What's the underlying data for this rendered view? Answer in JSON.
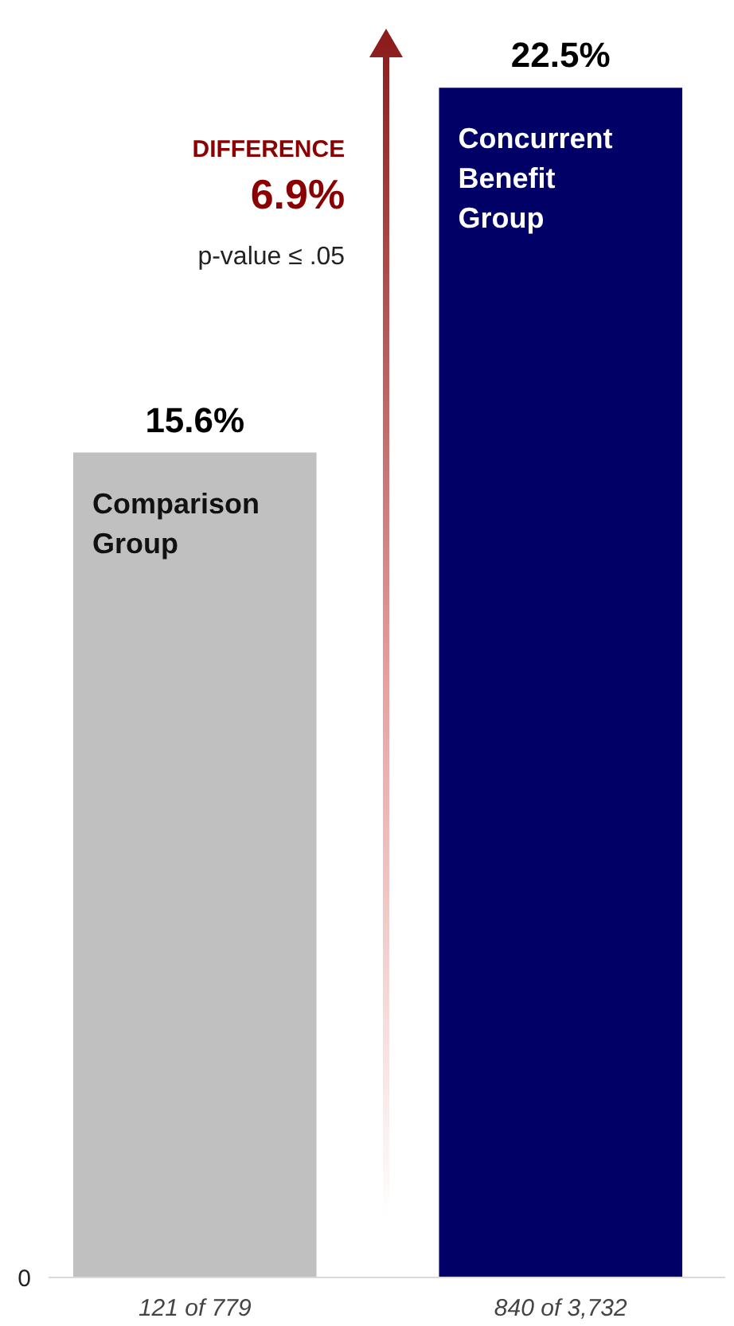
{
  "chart_data": {
    "type": "bar",
    "categories": [
      "121 of 779",
      "840 of 3,732"
    ],
    "values": [
      15.6,
      22.5
    ],
    "colors": [
      "#c0c0c0",
      "#000066"
    ],
    "value_labels": [
      "15.6%",
      "22.5%"
    ],
    "annotations": [
      "Comparison\nGroup",
      "Concurrent\nBenefit\nGroup",
      "DIFFERENCE",
      "6.9%",
      "p-value ≤ .05",
      "0"
    ]
  }
}
